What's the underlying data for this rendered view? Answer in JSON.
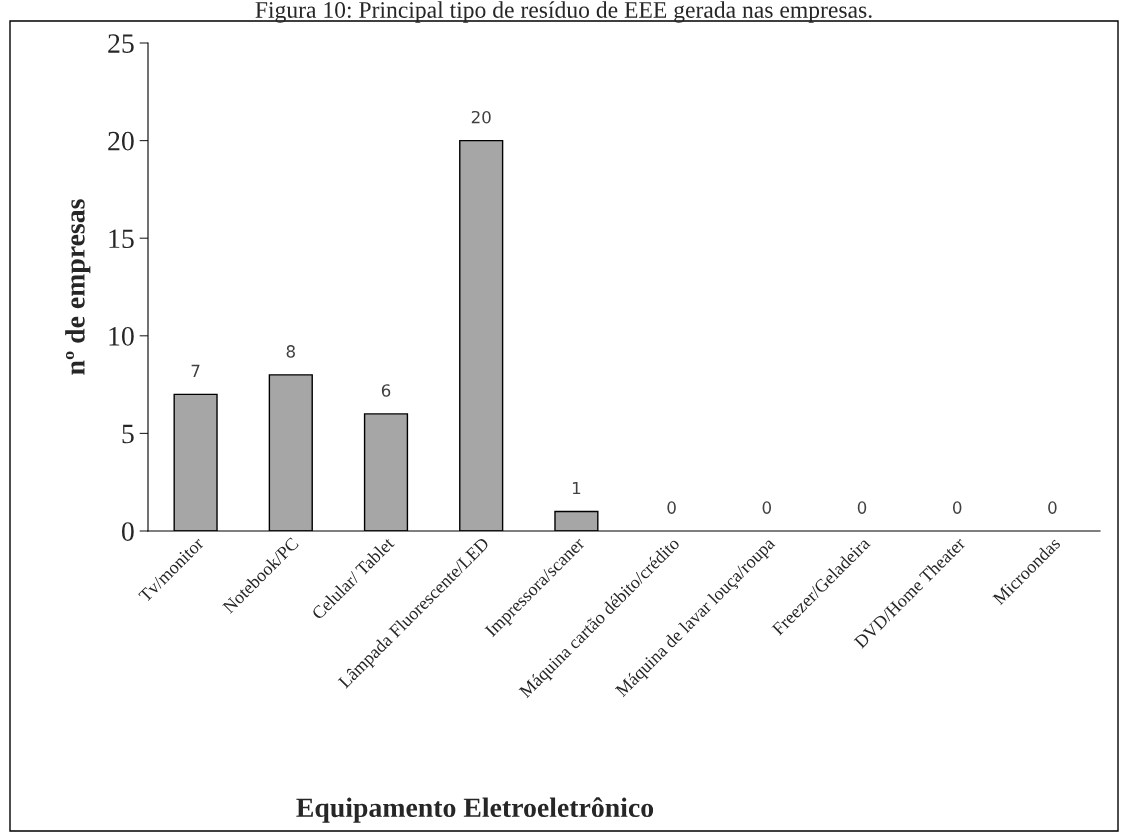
{
  "chart_data": {
    "type": "bar",
    "title": "Figura 10: Principal tipo de resíduo de EEE gerada nas empresas.",
    "xlabel": "Equipamento Eletroeletrônico",
    "ylabel": "nº de empresas",
    "categories": [
      "Tv/monitor",
      "Notebook/PC",
      "Celular/ Tablet",
      "Lâmpada Fluorescente/LED",
      "Impressora/scaner",
      "Máquina cartão débito/crédito",
      "Máquina de lavar louça/roupa",
      "Freezer/Geladeira",
      "DVD/Home Theater",
      "Microondas"
    ],
    "values": [
      7,
      8,
      6,
      20,
      1,
      0,
      0,
      0,
      0,
      0
    ],
    "color": "#a6a6a6",
    "ylim": [
      0,
      25
    ],
    "yticks": [
      0,
      5,
      10,
      15,
      20,
      25
    ],
    "data_labels": true,
    "grid": false,
    "legend": false
  }
}
